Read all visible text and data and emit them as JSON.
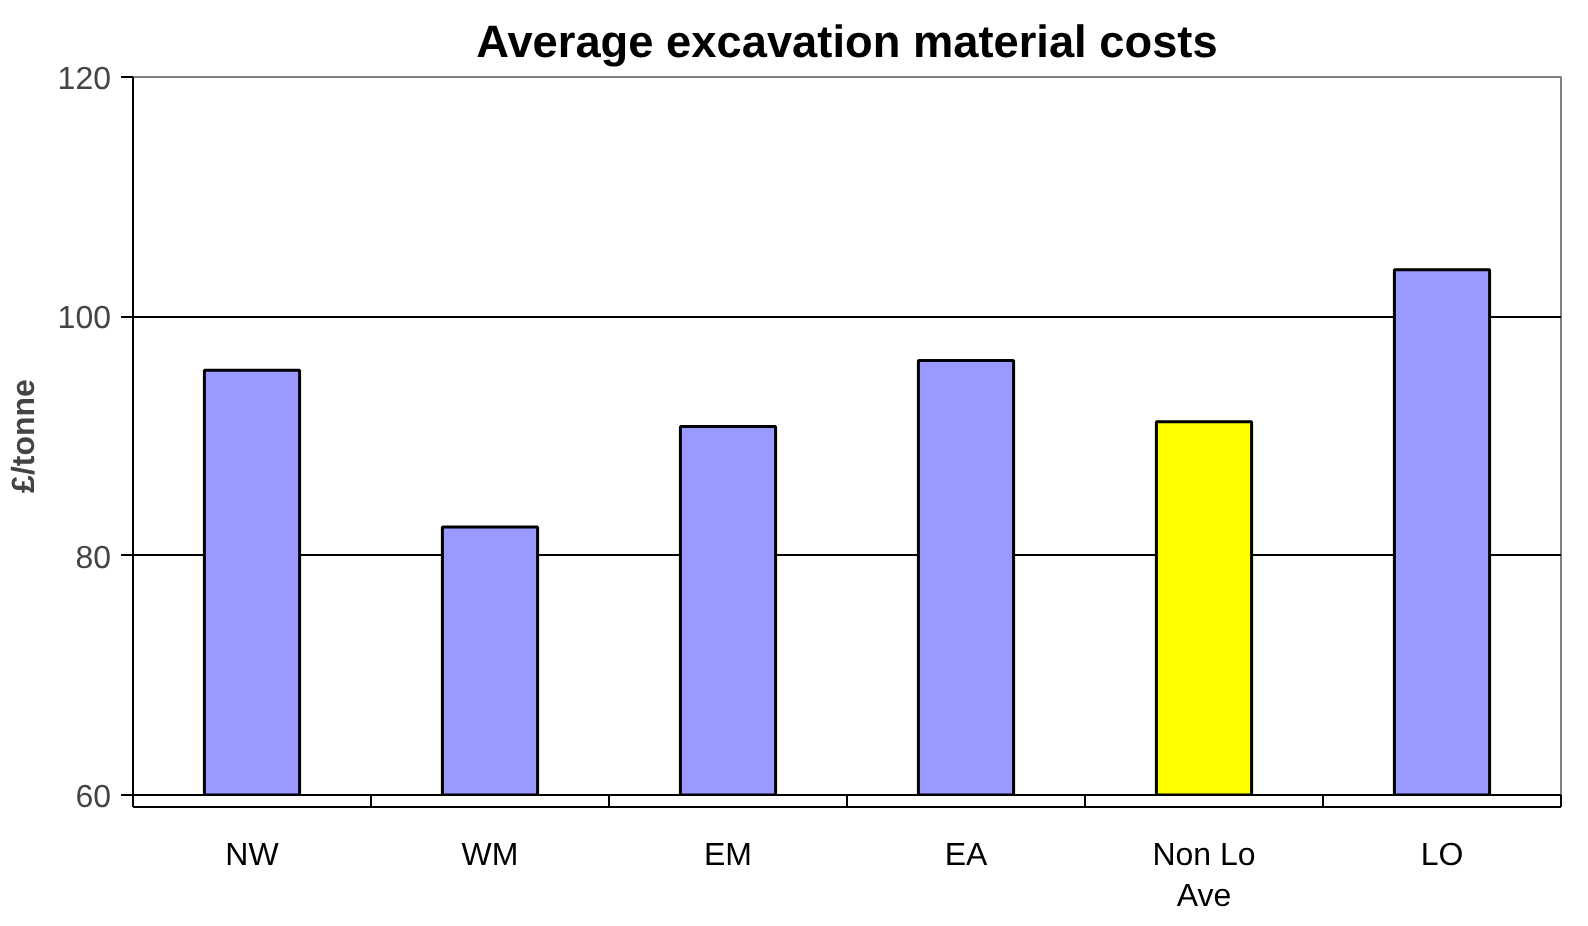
{
  "chart_data": {
    "type": "bar",
    "title": "Average excavation material costs",
    "ylabel": "£/tonne",
    "categories": [
      "NW",
      "WM",
      "EM",
      "EA",
      "Non Lo\nAve",
      "LO"
    ],
    "values": [
      95.5,
      82.4,
      90.8,
      96.3,
      91.2,
      103.9
    ],
    "colors": [
      "#9999ff",
      "#9999ff",
      "#9999ff",
      "#9999ff",
      "#ffff00",
      "#9999ff"
    ],
    "ylim": [
      60,
      120
    ],
    "yticks": [
      60,
      80,
      100,
      120
    ],
    "grid": "y"
  }
}
